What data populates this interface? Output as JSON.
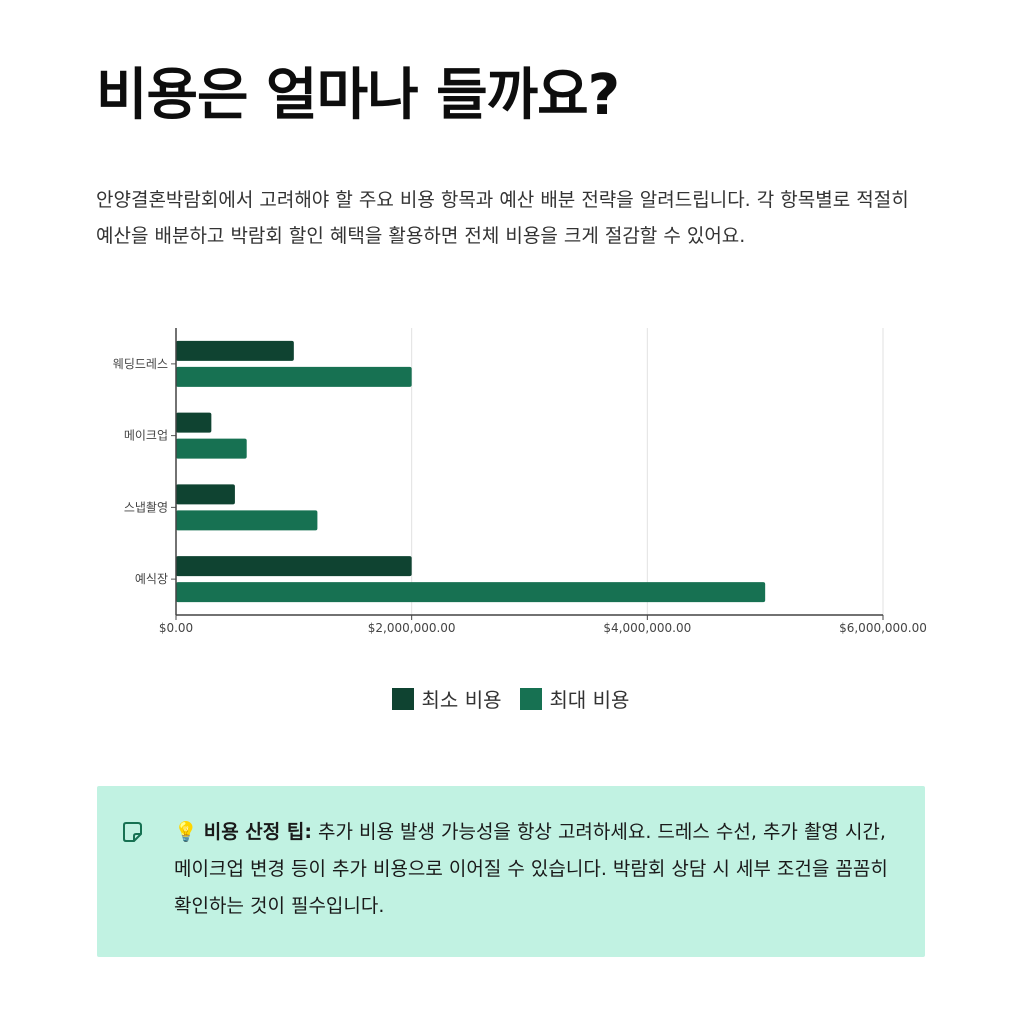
{
  "page": {
    "title": "비용은 얼마나 들까요?",
    "intro": "안양결혼박람회에서 고려해야 할 주요 비용 항목과 예산 배분 전략을 알려드립니다. 각 항목별로 적절히 예산을 배분하고 박람회 할인 혜택을 활용하면 전체 비용을 크게 절감할 수 있어요."
  },
  "chart_data": {
    "type": "bar",
    "orientation": "horizontal",
    "categories": [
      "웨딩드레스",
      "메이크업",
      "스냅촬영",
      "예식장"
    ],
    "series": [
      {
        "name": "최소 비용",
        "values": [
          1000000,
          300000,
          500000,
          2000000
        ],
        "color": "#0f4331"
      },
      {
        "name": "최대 비용",
        "values": [
          2000000,
          600000,
          1200000,
          5000000
        ],
        "color": "#177152"
      }
    ],
    "x_ticks": [
      0,
      2000000,
      4000000,
      6000000
    ],
    "x_tick_labels": [
      "$0.00",
      "$2,000,000.00",
      "$4,000,000.00",
      "$6,000,000.00"
    ],
    "xlim": [
      0,
      6000000
    ],
    "grid": "vertical",
    "legend_position": "bottom-center",
    "title": "",
    "xlabel": "",
    "ylabel": ""
  },
  "tip": {
    "emoji": "💡",
    "label": "비용 산정 팁:",
    "text": " 추가 비용 발생 가능성을 항상 고려하세요. 드레스 수선, 추가 촬영 시간, 메이크업 변경 등이 추가 비용으로 이어질 수 있습니다. 박람회 상담 시 세부 조건을 꼼꼼히 확인하는 것이 필수입니다.",
    "icon": "sticky-note-icon",
    "bg_color": "#c1f2e2",
    "icon_color": "#177152"
  }
}
